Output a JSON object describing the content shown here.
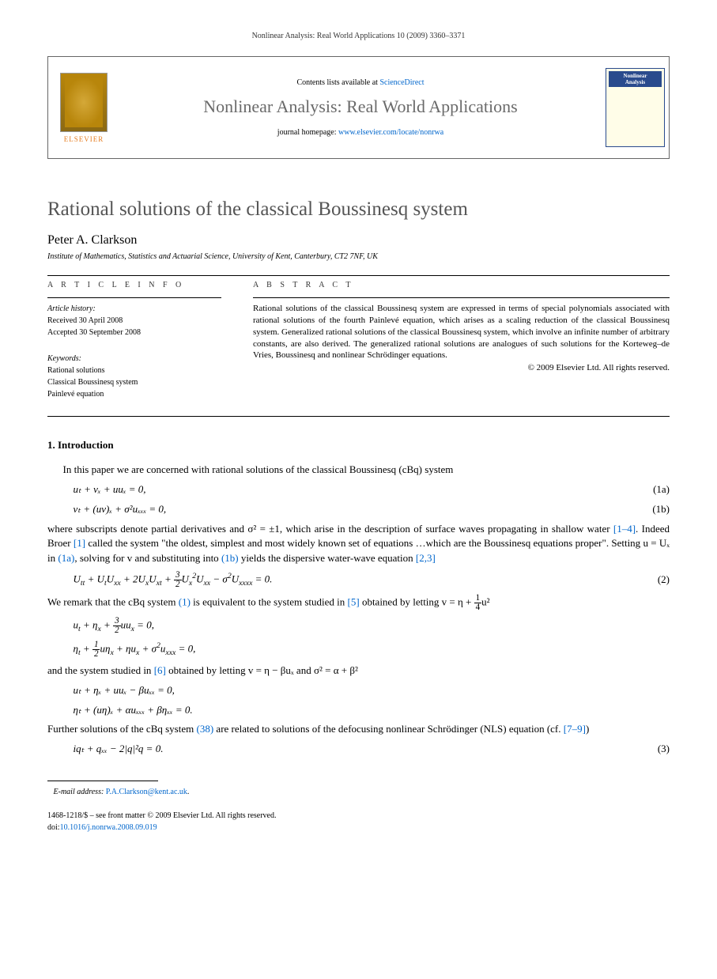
{
  "running_header": "Nonlinear Analysis: Real World Applications 10 (2009) 3360–3371",
  "masthead": {
    "logo_text": "ELSEVIER",
    "contents_prefix": "Contents lists available at ",
    "contents_link": "ScienceDirect",
    "journal_name": "Nonlinear Analysis: Real World Applications",
    "homepage_prefix": "journal homepage: ",
    "homepage_link": "www.elsevier.com/locate/nonrwa",
    "cover_label1": "Nonlinear",
    "cover_label2": "Analysis"
  },
  "title": "Rational solutions of the classical Boussinesq system",
  "author": "Peter A. Clarkson",
  "affiliation": "Institute of Mathematics, Statistics and Actuarial Science, University of Kent, Canterbury, CT2 7NF, UK",
  "info_heading": "A R T I C L E   I N F O",
  "abstract_heading": "A B S T R A C T",
  "history_label": "Article history:",
  "history_received": "Received 30 April 2008",
  "history_accepted": "Accepted 30 September 2008",
  "keywords_label": "Keywords:",
  "kw1": "Rational solutions",
  "kw2": "Classical Boussinesq system",
  "kw3": "Painlevé equation",
  "abstract_text": "Rational solutions of the classical Boussinesq system are expressed in terms of special polynomials associated with rational solutions of the fourth Painlevé equation, which arises as a scaling reduction of the classical Boussinesq system. Generalized rational solutions of the classical Boussinesq system, which involve an infinite number of arbitrary constants, are also derived. The generalized rational solutions are analogues of such solutions for the Korteweg–de Vries, Boussinesq and nonlinear Schrödinger equations.",
  "copyright": "© 2009 Elsevier Ltd. All rights reserved.",
  "section1": "1.  Introduction",
  "para1": "In this paper we are concerned with rational solutions of the classical Boussinesq (cBq) system",
  "eq1a": "uₜ + vₓ + uuₓ = 0,",
  "eq1a_num": "(1a)",
  "eq1b": "vₜ + (uv)ₓ + σ²uₓₓₓ = 0,",
  "eq1b_num": "(1b)",
  "para2_a": "where subscripts denote partial derivatives and σ² = ±1, which arise in the description of surface waves propagating in shallow water ",
  "para2_ref1": "[1–4]",
  "para2_b": ". Indeed Broer ",
  "para2_ref2": "[1]",
  "para2_c": " called the system \"the oldest, simplest and most widely known set of equations …which are the Boussinesq equations proper\". Setting u = Uₓ in ",
  "para2_ref3": "(1a)",
  "para2_d": ", solving for v and substituting into ",
  "para2_ref4": "(1b)",
  "para2_e": " yields the dispersive water-wave equation ",
  "para2_ref5": "[2,3]",
  "eq2_num": "(2)",
  "para3_a": "We remark that the cBq system ",
  "para3_ref1": "(1)",
  "para3_b": " is equivalent to the system studied in ",
  "para3_ref2": "[5]",
  "para3_c": " obtained by letting v = η + ",
  "para3_d": "u²",
  "para4_a": "and the system studied in ",
  "para4_ref1": "[6]",
  "para4_b": " obtained by letting v = η − βuₓ and σ² = α + β²",
  "eq_sys2a": "uₜ + ηₓ + uuₓ − βuₓₓ = 0,",
  "eq_sys2b": "ηₜ + (uη)ₓ + αuₓₓₓ + βηₓₓ = 0.",
  "para5_a": "Further solutions of the cBq system ",
  "para5_ref1": "(38)",
  "para5_b": " are related to solutions of the defocusing nonlinear Schrödinger (NLS) equation (cf. ",
  "para5_ref2": "[7–9]",
  "para5_c": ")",
  "eq3": "iqₜ + qₓₓ − 2|q|²q = 0.",
  "eq3_num": "(3)",
  "email_label": "E-mail address: ",
  "email": "P.A.Clarkson@kent.ac.uk",
  "email_suffix": ".",
  "footer_line1": "1468-1218/$ – see front matter © 2009 Elsevier Ltd. All rights reserved.",
  "doi_label": "doi:",
  "doi": "10.1016/j.nonrwa.2008.09.019"
}
